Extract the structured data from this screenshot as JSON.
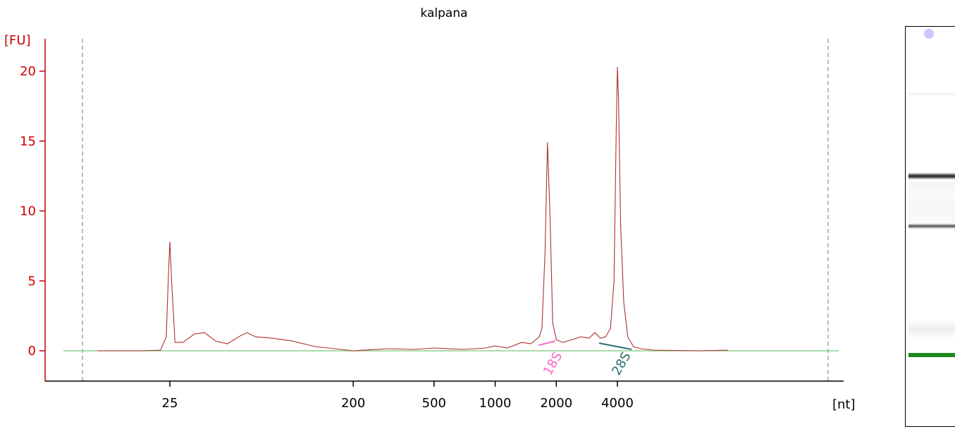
{
  "chart_data": {
    "type": "line",
    "title": "kalpana",
    "ylabel": "[FU]",
    "xlabel": "[nt]",
    "ylim": [
      -2,
      22.5
    ],
    "y_ticks": [
      0,
      5,
      10,
      15,
      20
    ],
    "x_ticks": [
      {
        "label": "25",
        "value": 25
      },
      {
        "label": "200",
        "value": 200
      },
      {
        "label": "500",
        "value": 500
      },
      {
        "label": "1000",
        "value": 1000
      },
      {
        "label": "2000",
        "value": 2000
      },
      {
        "label": "4000",
        "value": 4000
      }
    ],
    "grid": false,
    "colors": {
      "axis": "#cc0000",
      "trace": "#b03030",
      "baseline": "#7cc47c",
      "marker": "#4a9a4a",
      "label_18s": "#ff66cc",
      "label_28s": "#2f6f6f"
    },
    "series": [
      {
        "points": [
          [
            11.0,
            0.0
          ],
          [
            18.0,
            0.0
          ],
          [
            22.5,
            0.05
          ],
          [
            24.0,
            1.0
          ],
          [
            24.6,
            5.5
          ],
          [
            25.0,
            7.8
          ],
          [
            25.5,
            5.0
          ],
          [
            26.5,
            0.6
          ],
          [
            29.0,
            0.6
          ],
          [
            33.0,
            1.2
          ],
          [
            37.0,
            1.3
          ],
          [
            42.0,
            0.7
          ],
          [
            48.0,
            0.5
          ],
          [
            56.0,
            1.1
          ],
          [
            60.0,
            1.3
          ],
          [
            66.0,
            1.0
          ],
          [
            80.0,
            0.9
          ],
          [
            100.0,
            0.7
          ],
          [
            130.0,
            0.3
          ],
          [
            200.0,
            0.0
          ],
          [
            300.0,
            0.15
          ],
          [
            400.0,
            0.1
          ],
          [
            500.0,
            0.2
          ],
          [
            700.0,
            0.1
          ],
          [
            900.0,
            0.2
          ],
          [
            1000.0,
            0.35
          ],
          [
            1150.0,
            0.2
          ],
          [
            1350.0,
            0.6
          ],
          [
            1500.0,
            0.5
          ],
          [
            1650.0,
            1.0
          ],
          [
            1700.0,
            1.6
          ],
          [
            1760.0,
            7.0
          ],
          [
            1810.0,
            14.9
          ],
          [
            1860.0,
            10.0
          ],
          [
            1920.0,
            2.0
          ],
          [
            2000.0,
            0.8
          ],
          [
            2150.0,
            0.6
          ],
          [
            2400.0,
            0.8
          ],
          [
            2650.0,
            1.0
          ],
          [
            2900.0,
            0.9
          ],
          [
            3100.0,
            1.3
          ],
          [
            3300.0,
            0.9
          ],
          [
            3500.0,
            1.0
          ],
          [
            3700.0,
            1.6
          ],
          [
            3850.0,
            5.0
          ],
          [
            3950.0,
            16.0
          ],
          [
            4000.0,
            20.3
          ],
          [
            4050.0,
            18.0
          ],
          [
            4150.0,
            9.0
          ],
          [
            4300.0,
            3.5
          ],
          [
            4500.0,
            1.0
          ],
          [
            4800.0,
            0.3
          ],
          [
            5200.0,
            0.15
          ],
          [
            6000.0,
            0.05
          ],
          [
            10000.0,
            0.0
          ],
          [
            14000.0,
            0.05
          ]
        ]
      }
    ],
    "peak_labels": [
      {
        "label": "18S",
        "x": 1810
      },
      {
        "label": "28S",
        "x": 4000
      }
    ]
  }
}
